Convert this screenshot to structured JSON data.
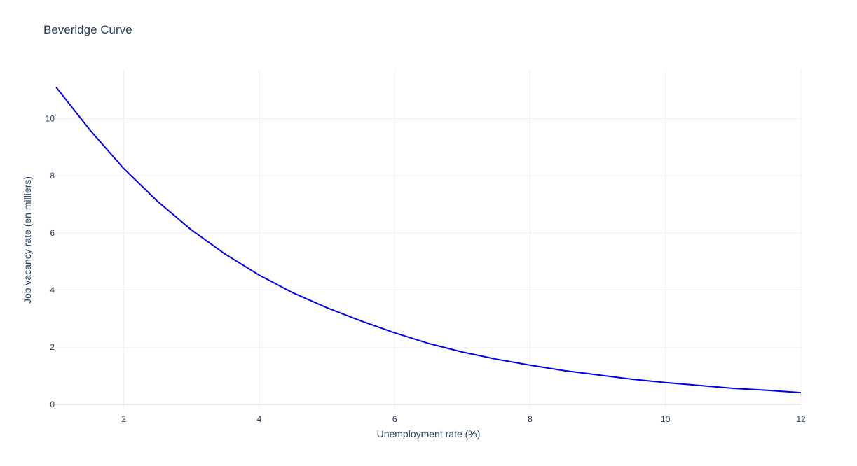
{
  "chart_data": {
    "type": "line",
    "title": "Beveridge Curve",
    "xlabel": "Unemployment rate (%)",
    "ylabel": "Job vacancy rate (en milliers)",
    "xlim": [
      1,
      12
    ],
    "ylim": [
      -0.2,
      11.7
    ],
    "xticks": [
      2,
      4,
      6,
      8,
      10,
      12
    ],
    "yticks": [
      0,
      2,
      4,
      6,
      8,
      10
    ],
    "grid": true,
    "legend": "none",
    "colors": {
      "line": "#0000ee",
      "grid": "#ebf0f8",
      "zeroline": "#e1e5ee",
      "text": "#2a3f5f"
    },
    "series": [
      {
        "x": [
          1.0,
          1.5,
          2.0,
          2.5,
          3.0,
          3.5,
          4.0,
          4.5,
          5.0,
          5.5,
          6.0,
          6.5,
          7.0,
          7.5,
          8.0,
          8.5,
          9.0,
          9.5,
          10.0,
          10.5,
          11.0,
          11.5,
          12.0
        ],
        "y": [
          11.1,
          9.6,
          8.25,
          7.1,
          6.1,
          5.25,
          4.52,
          3.9,
          3.38,
          2.92,
          2.5,
          2.13,
          1.83,
          1.58,
          1.37,
          1.18,
          1.03,
          0.88,
          0.76,
          0.66,
          0.56,
          0.49,
          0.41
        ]
      }
    ]
  }
}
